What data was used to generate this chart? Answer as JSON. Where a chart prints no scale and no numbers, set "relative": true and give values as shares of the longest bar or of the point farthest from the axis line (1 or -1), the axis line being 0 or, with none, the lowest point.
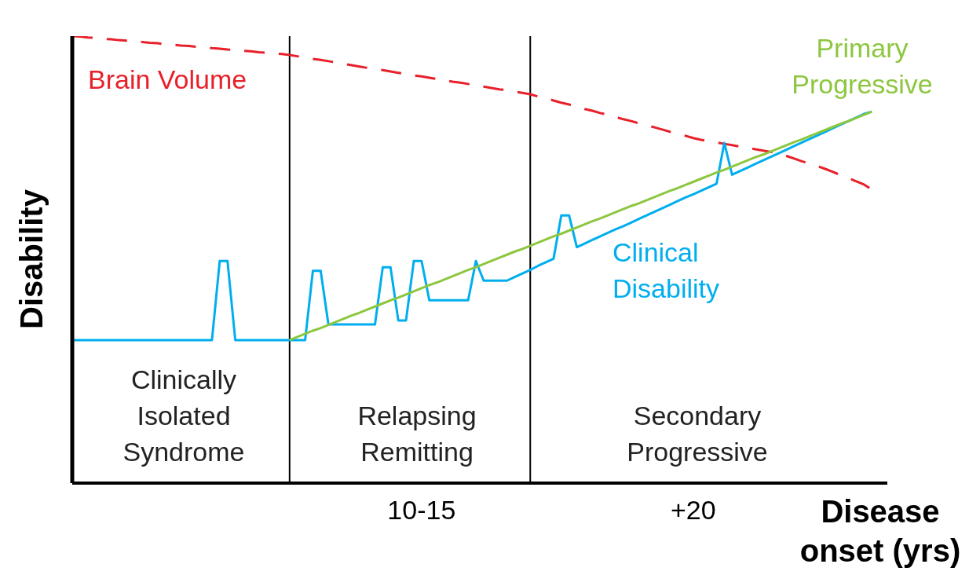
{
  "chart_data": {
    "type": "line",
    "relative": true,
    "xlabel": "Disease onset (yrs)",
    "ylabel": "Disability",
    "categories": [
      null,
      null,
      null,
      null,
      null,
      null,
      null,
      null,
      null,
      null,
      null,
      null,
      null,
      null,
      null,
      null,
      null,
      null,
      null,
      null,
      null,
      null,
      null,
      null,
      null,
      null,
      null,
      null,
      null,
      null,
      null,
      null,
      null,
      null,
      null,
      null,
      null,
      null,
      null,
      null,
      null,
      null,
      null,
      null,
      null,
      "10-15",
      null,
      null,
      null,
      null,
      null,
      null,
      null,
      null,
      null,
      null,
      null,
      null,
      null,
      null,
      null,
      null,
      null,
      null,
      null,
      null,
      null,
      null,
      null,
      null,
      null,
      null,
      null,
      null,
      null,
      null,
      null,
      null,
      null,
      null,
      "+20",
      null,
      null,
      null,
      null,
      null,
      null,
      null,
      null,
      null,
      null,
      null,
      null,
      null,
      null,
      null,
      null,
      null,
      null,
      null,
      null,
      null,
      null,
      null,
      null,
      null
    ],
    "grid": false,
    "legend": false,
    "marker": "none",
    "annotations": [
      "Clinically\nIsolated\nSyndrome",
      "Relapsing\nRemitting",
      "Secondary\nProgressive"
    ],
    "series": [
      {
        "name": "Brain Volume",
        "color": "#e8202a",
        "line_style": "dashed",
        "values": [
          1.0,
          0.999,
          0.997,
          0.996,
          0.994,
          0.993,
          0.991,
          0.99,
          0.988,
          0.987,
          0.985,
          0.984,
          0.982,
          0.981,
          0.979,
          0.978,
          0.976,
          0.975,
          0.973,
          0.972,
          0.97,
          0.969,
          0.967,
          0.966,
          0.964,
          0.963,
          0.961,
          0.96,
          0.958,
          0.955,
          0.952,
          0.949,
          0.947,
          0.944,
          0.941,
          0.938,
          0.935,
          0.932,
          0.929,
          0.927,
          0.924,
          0.921,
          0.918,
          0.915,
          0.912,
          0.91,
          0.907,
          0.904,
          0.901,
          0.898,
          0.896,
          0.893,
          0.89,
          0.887,
          0.884,
          0.881,
          0.879,
          0.876,
          0.873,
          0.87,
          0.865,
          0.861,
          0.856,
          0.851,
          0.847,
          0.842,
          0.837,
          0.833,
          0.828,
          0.824,
          0.819,
          0.814,
          0.81,
          0.805,
          0.8,
          0.796,
          0.791,
          0.786,
          0.782,
          0.777,
          0.772,
          0.768,
          0.765,
          0.762,
          0.759,
          0.756,
          0.753,
          0.75,
          0.747,
          0.744,
          0.741,
          0.738,
          0.732,
          0.726,
          0.72,
          0.715,
          0.709,
          0.703,
          0.696,
          0.689,
          0.682,
          0.675,
          0.668,
          0.657,
          null,
          null
        ]
      },
      {
        "name": "Clinical Disability",
        "color": "#00aeef",
        "line_style": "solid",
        "values": [
          0.32,
          0.32,
          0.32,
          0.32,
          0.32,
          0.32,
          0.32,
          0.32,
          0.32,
          0.32,
          0.32,
          0.32,
          0.32,
          0.32,
          0.32,
          0.32,
          0.32,
          0.32,
          0.32,
          0.497,
          0.497,
          0.32,
          0.32,
          0.32,
          0.32,
          0.32,
          0.32,
          0.32,
          0.32,
          0.32,
          0.32,
          0.475,
          0.475,
          0.355,
          0.355,
          0.355,
          0.355,
          0.355,
          0.355,
          0.355,
          0.483,
          0.483,
          0.364,
          0.364,
          0.497,
          0.497,
          0.409,
          0.409,
          0.409,
          0.409,
          0.409,
          0.409,
          0.497,
          0.453,
          0.453,
          0.453,
          0.453,
          0.461,
          0.469,
          0.477,
          0.486,
          0.494,
          0.502,
          0.599,
          0.599,
          0.528,
          0.536,
          0.544,
          0.552,
          0.56,
          0.568,
          0.575,
          0.583,
          0.591,
          0.599,
          0.607,
          0.615,
          0.623,
          0.631,
          0.639,
          0.646,
          0.654,
          0.662,
          0.67,
          0.761,
          0.69,
          0.698,
          0.706,
          0.714,
          0.722,
          0.73,
          0.738,
          0.746,
          0.754,
          0.762,
          0.77,
          0.778,
          0.786,
          0.794,
          0.802,
          0.81,
          0.818,
          0.826,
          0.831,
          null,
          null
        ]
      },
      {
        "name": "Primary Progressive",
        "color": "#8dc63f",
        "line_style": "solid",
        "values": [
          null,
          null,
          null,
          null,
          null,
          null,
          null,
          null,
          null,
          null,
          null,
          null,
          null,
          null,
          null,
          null,
          null,
          null,
          null,
          null,
          null,
          null,
          null,
          null,
          null,
          null,
          null,
          null,
          0.32,
          0.327,
          0.334,
          0.341,
          0.347,
          0.354,
          0.361,
          0.368,
          0.375,
          0.381,
          0.388,
          0.395,
          0.402,
          0.409,
          0.415,
          0.422,
          0.429,
          0.436,
          0.443,
          0.449,
          0.456,
          0.463,
          0.47,
          0.477,
          0.483,
          0.49,
          0.497,
          0.504,
          0.511,
          0.518,
          0.524,
          0.531,
          0.538,
          0.545,
          0.552,
          0.558,
          0.565,
          0.572,
          0.579,
          0.586,
          0.592,
          0.599,
          0.606,
          0.613,
          0.62,
          0.626,
          0.633,
          0.64,
          0.647,
          0.654,
          0.66,
          0.667,
          0.674,
          0.681,
          0.688,
          0.695,
          0.701,
          0.708,
          0.715,
          0.722,
          0.729,
          0.735,
          0.742,
          0.749,
          0.756,
          0.763,
          0.769,
          0.776,
          0.783,
          0.79,
          0.797,
          0.804,
          0.81,
          0.817,
          0.824,
          0.831,
          null,
          null
        ]
      }
    ]
  }
}
